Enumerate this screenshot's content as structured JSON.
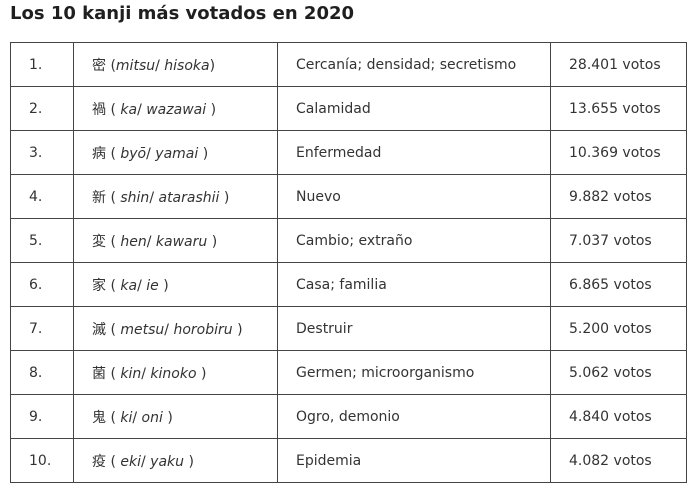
{
  "title": "Los 10 kanji más votados en 2020",
  "table": {
    "rows": [
      {
        "rank": "1.",
        "kanji": "密",
        "open": " (",
        "reading1": "mitsu",
        "sep": "/ ",
        "reading2": "hisoka",
        "close": ")",
        "meaning": "Cercanía; densidad; secretismo",
        "votes": "28.401 votos"
      },
      {
        "rank": "2.",
        "kanji": "禍",
        "open": " ( ",
        "reading1": "ka",
        "sep": "/ ",
        "reading2": "wazawai",
        "close": " )",
        "meaning": "Calamidad",
        "votes": "13.655 votos"
      },
      {
        "rank": "3.",
        "kanji": "病",
        "open": " ( ",
        "reading1": "byō",
        "sep": "/ ",
        "reading2": "yamai",
        "close": " )",
        "meaning": "Enfermedad",
        "votes": "10.369 votos"
      },
      {
        "rank": "4.",
        "kanji": "新",
        "open": " ( ",
        "reading1": "shin",
        "sep": "/ ",
        "reading2": "atarashii",
        "close": " )",
        "meaning": "Nuevo",
        "votes": "9.882 votos"
      },
      {
        "rank": "5.",
        "kanji": "変",
        "open": " ( ",
        "reading1": "hen",
        "sep": "/ ",
        "reading2": "kawaru",
        "close": " )",
        "meaning": "Cambio; extraño",
        "votes": "7.037 votos"
      },
      {
        "rank": "6.",
        "kanji": "家",
        "open": " ( ",
        "reading1": "ka",
        "sep": "/ ",
        "reading2": "ie",
        "close": " )",
        "meaning": "Casa; familia",
        "votes": "6.865 votos"
      },
      {
        "rank": "7.",
        "kanji": "滅",
        "open": " ( ",
        "reading1": "metsu",
        "sep": "/ ",
        "reading2": "horobiru",
        "close": " )",
        "meaning": "Destruir",
        "votes": "5.200 votos"
      },
      {
        "rank": "8.",
        "kanji": "菌",
        "open": " ( ",
        "reading1": "kin",
        "sep": "/ ",
        "reading2": "kinoko",
        "close": " )",
        "meaning": "Germen; microorganismo",
        "votes": "5.062 votos"
      },
      {
        "rank": "9.",
        "kanji": "鬼",
        "open": " ( ",
        "reading1": "ki",
        "sep": "/ ",
        "reading2": "oni",
        "close": " )",
        "meaning": "Ogro, demonio",
        "votes": "4.840 votos"
      },
      {
        "rank": "10.",
        "kanji": "疫",
        "open": " ( ",
        "reading1": "eki",
        "sep": "/ ",
        "reading2": "yaku",
        "close": " )",
        "meaning": "Epidemia",
        "votes": "4.082 votos"
      }
    ]
  }
}
